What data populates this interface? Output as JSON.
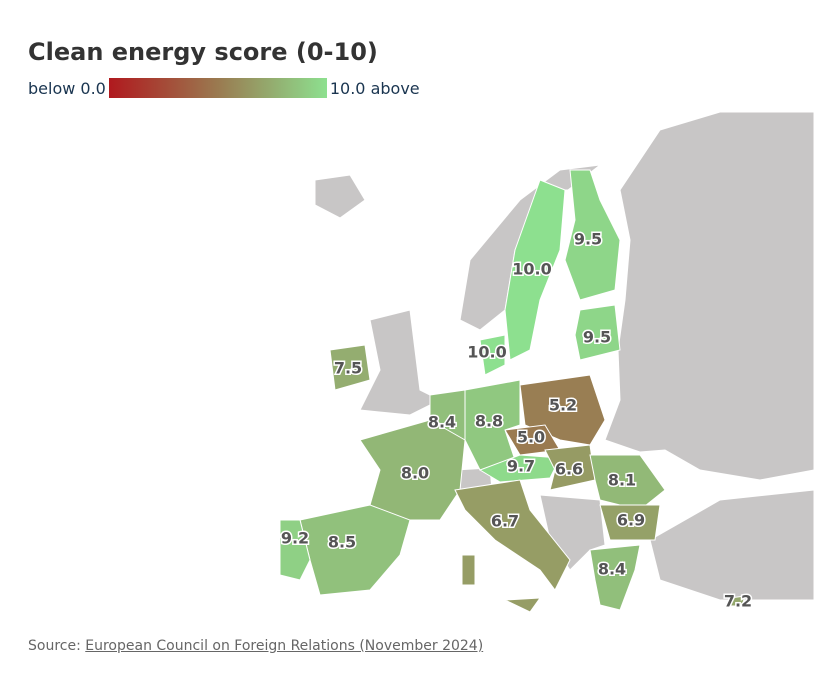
{
  "title": "Clean energy score (0-10)",
  "legend": {
    "min": {
      "value": 0,
      "label": "below 0.0"
    },
    "max": {
      "value": 10,
      "label": "10.0 above"
    },
    "colors": [
      "#b0191e",
      "#9a7a50",
      "#8de08f"
    ]
  },
  "regions": [
    {
      "value": 9.5,
      "label": "9.5"
    },
    {
      "value": 10,
      "label": "10.0"
    },
    {
      "value": 9.5,
      "label": "9.5"
    },
    {
      "value": 10,
      "label": "10.0"
    },
    {
      "value": 7.5,
      "label": "7.5"
    },
    {
      "value": 5.2,
      "label": "5.2"
    },
    {
      "value": 5,
      "label": "5.0"
    },
    {
      "value": 8.8,
      "label": "8.8"
    },
    {
      "value": 8.4,
      "label": "8.4"
    },
    {
      "value": 8,
      "label": "8.0"
    },
    {
      "value": 9.7,
      "label": "9.7"
    },
    {
      "value": 6.6,
      "label": "6.6"
    },
    {
      "value": 8.1,
      "label": "8.1"
    },
    {
      "value": 6.9,
      "label": "6.9"
    },
    {
      "value": 6.7,
      "label": "6.7"
    },
    {
      "value": 8.5,
      "label": "8.5"
    },
    {
      "value": 9.2,
      "label": "9.2"
    },
    {
      "value": 8.4,
      "label": "8.4"
    },
    {
      "value": 7.2,
      "label": "7.2"
    }
  ],
  "source": {
    "prefix": "Source:",
    "link": "European Council on Foreign Relations (November 2024)"
  }
}
